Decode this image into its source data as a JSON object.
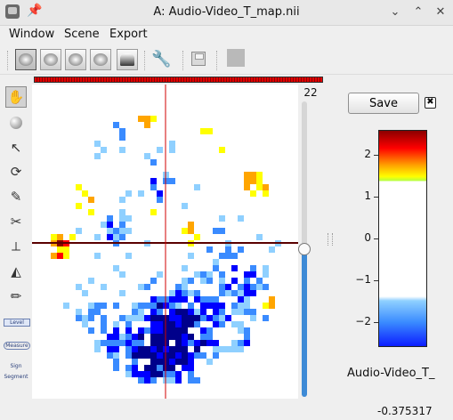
{
  "window": {
    "title": "A: Audio-Video_T_map.nii"
  },
  "menu": {
    "items": [
      "Window",
      "Scene",
      "Export"
    ]
  },
  "toolbar": {
    "view_buttons": [
      "view-1",
      "view-2",
      "view-3",
      "view-4",
      "view-5"
    ],
    "active_index": 0
  },
  "slice": {
    "value": "22",
    "position_fraction": 0.5
  },
  "progress": {
    "fraction": 1.0
  },
  "tools": {
    "level_label": "Level",
    "measure_label": "Measure",
    "segment_label_top": "Sign",
    "segment_label": "Segment"
  },
  "panel": {
    "save_label": "Save",
    "close_symbol": "✖",
    "map_name": "Audio-Video_T_",
    "cursor_value": "-0.375317",
    "colorbar_ticks": [
      "2",
      "1",
      "0",
      "−1",
      "−2"
    ],
    "colorbar_tick_values": [
      2,
      1,
      0,
      -1,
      -2
    ],
    "colorbar_range": [
      -2.6,
      2.6
    ],
    "colorbar_threshold": [
      -1.4,
      1.4
    ]
  },
  "colors": {
    "positive": [
      "#ffff00",
      "#ffa500",
      "#ff0000",
      "#8b0000"
    ],
    "negative": [
      "#8fd0ff",
      "#3a8bff",
      "#0000ff",
      "#00008b"
    ],
    "crosshair_h": "#5a0000",
    "crosshair_v": "#d00000",
    "slider_accent": "#3d8ad6"
  },
  "icons": {
    "app": "app-icon",
    "pin": "pin-icon",
    "wrench": "wrench-icon",
    "disk": "disk-icon"
  }
}
